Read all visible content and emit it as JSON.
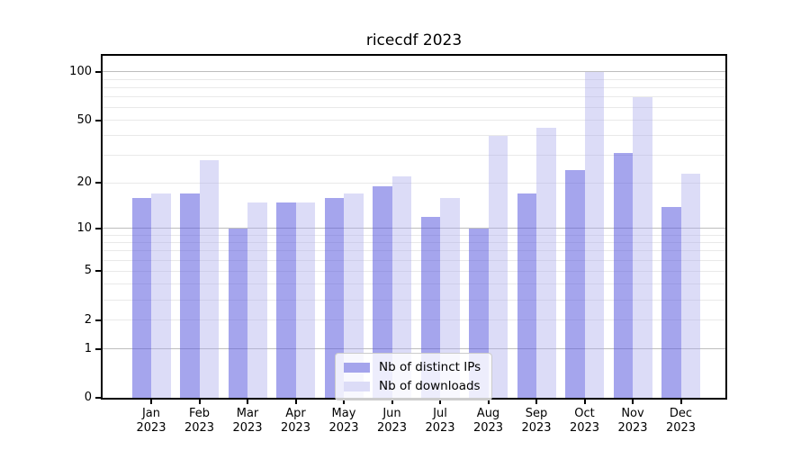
{
  "title": "ricecdf 2023",
  "chart_data": {
    "type": "bar",
    "title": "ricecdf 2023",
    "scale": "log1p",
    "categories": [
      "Jan",
      "Feb",
      "Mar",
      "Apr",
      "May",
      "Jun",
      "Jul",
      "Aug",
      "Sep",
      "Oct",
      "Nov",
      "Dec"
    ],
    "category_year": "2023",
    "series": [
      {
        "name": "Nb of distinct IPs",
        "color": "#a4a4ec",
        "fill": "rgba(91,91,223,0.55)",
        "values": [
          16,
          17,
          10,
          15,
          16,
          19,
          12,
          10,
          17,
          24,
          31,
          14
        ]
      },
      {
        "name": "Nb of downloads",
        "color": "#dcdcf7",
        "fill": "rgba(171,171,236,0.42)",
        "values": [
          17,
          28,
          15,
          15,
          17,
          22,
          16,
          40,
          45,
          100,
          70,
          23
        ]
      }
    ],
    "y_ticks": [
      0,
      1,
      2,
      5,
      10,
      20,
      50,
      100
    ],
    "ylim": [
      0,
      126
    ],
    "grid": {
      "major": [
        1,
        10,
        100
      ],
      "minor": [
        2,
        3,
        4,
        5,
        6,
        7,
        8,
        9,
        20,
        30,
        40,
        50,
        60,
        70,
        80,
        90
      ],
      "major_color": "#bdbdbd",
      "minor_color": "#e9e9e9"
    },
    "legend_position": "inside-bottom-center"
  }
}
